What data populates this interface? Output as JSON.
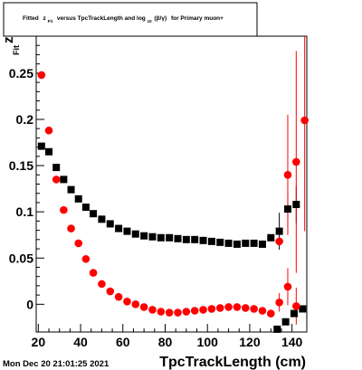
{
  "title": {
    "prefix": "Fitted",
    "z_sym": "z",
    "z_sub": "Fit",
    "mid": "versus TpcTrackLength and log",
    "log_sub": "10",
    "paren": "(β/γ)",
    "suffix": "for Primary muon+"
  },
  "footer": {
    "datestamp": "Mon Dec 20 21:01:25 2021"
  },
  "colors": {
    "black_series": "#000000",
    "red_series": "#ff0000",
    "frame": "#000000"
  },
  "chart_data": {
    "type": "scatter",
    "xlabel": "TpcTrackLength (cm)",
    "ylabel": "z_Fit",
    "xlim": [
      19,
      147
    ],
    "ylim": [
      -0.03,
      0.29
    ],
    "x_ticks": [
      {
        "value": 20,
        "label": "20"
      },
      {
        "value": 40,
        "label": "40"
      },
      {
        "value": 60,
        "label": "60"
      },
      {
        "value": 80,
        "label": "80"
      },
      {
        "value": 100,
        "label": "100"
      },
      {
        "value": 120,
        "label": "120"
      },
      {
        "value": 140,
        "label": "140"
      }
    ],
    "y_ticks": [
      {
        "value": 0,
        "label": "0"
      },
      {
        "value": 0.05,
        "label": "0.05"
      },
      {
        "value": 0.1,
        "label": "0.1"
      },
      {
        "value": 0.15,
        "label": "0.15"
      },
      {
        "value": 0.2,
        "label": "0.2"
      },
      {
        "value": 0.25,
        "label": "0.25"
      }
    ],
    "series": [
      {
        "name": "",
        "color": "#000000",
        "marker": "square",
        "points": [
          {
            "x": 21.5,
            "y": 0.171,
            "err": 0.0
          },
          {
            "x": 25,
            "y": 0.165,
            "err": 0.0
          },
          {
            "x": 28.5,
            "y": 0.148,
            "err": 0.0
          },
          {
            "x": 32,
            "y": 0.135,
            "err": 0.0
          },
          {
            "x": 35.5,
            "y": 0.124,
            "err": 0.0
          },
          {
            "x": 39,
            "y": 0.114,
            "err": 0.0
          },
          {
            "x": 42.5,
            "y": 0.105,
            "err": 0.0
          },
          {
            "x": 46,
            "y": 0.098,
            "err": 0.0
          },
          {
            "x": 50,
            "y": 0.092,
            "err": 0.0
          },
          {
            "x": 54,
            "y": 0.087,
            "err": 0.0
          },
          {
            "x": 58,
            "y": 0.082,
            "err": 0.0
          },
          {
            "x": 62,
            "y": 0.079,
            "err": 0.0
          },
          {
            "x": 66,
            "y": 0.076,
            "err": 0.0
          },
          {
            "x": 70,
            "y": 0.074,
            "err": 0.0
          },
          {
            "x": 74,
            "y": 0.073,
            "err": 0.0
          },
          {
            "x": 78,
            "y": 0.072,
            "err": 0.0
          },
          {
            "x": 82,
            "y": 0.072,
            "err": 0.0
          },
          {
            "x": 86,
            "y": 0.071,
            "err": 0.0
          },
          {
            "x": 90,
            "y": 0.07,
            "err": 0.0
          },
          {
            "x": 94,
            "y": 0.07,
            "err": 0.0
          },
          {
            "x": 98,
            "y": 0.069,
            "err": 0.0
          },
          {
            "x": 102,
            "y": 0.068,
            "err": 0.0
          },
          {
            "x": 106,
            "y": 0.067,
            "err": 0.0
          },
          {
            "x": 110,
            "y": 0.066,
            "err": 0.0
          },
          {
            "x": 114,
            "y": 0.065,
            "err": 0.0
          },
          {
            "x": 118,
            "y": 0.066,
            "err": 0.0
          },
          {
            "x": 122,
            "y": 0.066,
            "err": 0.0
          },
          {
            "x": 126,
            "y": 0.065,
            "err": 0.0
          },
          {
            "x": 130,
            "y": 0.072,
            "err": 0.0
          },
          {
            "x": 134,
            "y": 0.079,
            "err": 0.02
          },
          {
            "x": 138,
            "y": 0.103,
            "err": 0.02
          },
          {
            "x": 142,
            "y": 0.108,
            "err": 0.02
          },
          {
            "x": 133,
            "y": -0.027,
            "err": 0.0
          },
          {
            "x": 137,
            "y": -0.019,
            "err": 0.0
          },
          {
            "x": 141,
            "y": -0.01,
            "err": 0.0
          },
          {
            "x": 145,
            "y": -0.005,
            "err": 0.0
          }
        ]
      },
      {
        "name": "",
        "color": "#ff0000",
        "marker": "circle",
        "points": [
          {
            "x": 21.5,
            "y": 0.248,
            "err": 0.0
          },
          {
            "x": 25,
            "y": 0.188,
            "err": 0.0
          },
          {
            "x": 28.5,
            "y": 0.135,
            "err": 0.0
          },
          {
            "x": 32,
            "y": 0.102,
            "err": 0.0
          },
          {
            "x": 35.5,
            "y": 0.082,
            "err": 0.0
          },
          {
            "x": 39,
            "y": 0.066,
            "err": 0.0
          },
          {
            "x": 42.5,
            "y": 0.049,
            "err": 0.0
          },
          {
            "x": 46,
            "y": 0.034,
            "err": 0.0
          },
          {
            "x": 50,
            "y": 0.022,
            "err": 0.0
          },
          {
            "x": 54,
            "y": 0.014,
            "err": 0.0
          },
          {
            "x": 58,
            "y": 0.008,
            "err": 0.0
          },
          {
            "x": 62,
            "y": 0.003,
            "err": 0.0
          },
          {
            "x": 66,
            "y": 0.0,
            "err": 0.0
          },
          {
            "x": 70,
            "y": -0.003,
            "err": 0.0
          },
          {
            "x": 74,
            "y": -0.006,
            "err": 0.0
          },
          {
            "x": 78,
            "y": -0.008,
            "err": 0.0
          },
          {
            "x": 82,
            "y": -0.009,
            "err": 0.0
          },
          {
            "x": 86,
            "y": -0.009,
            "err": 0.0
          },
          {
            "x": 90,
            "y": -0.008,
            "err": 0.0
          },
          {
            "x": 94,
            "y": -0.007,
            "err": 0.0
          },
          {
            "x": 98,
            "y": -0.006,
            "err": 0.0
          },
          {
            "x": 102,
            "y": -0.005,
            "err": 0.0
          },
          {
            "x": 106,
            "y": -0.004,
            "err": 0.0
          },
          {
            "x": 110,
            "y": -0.003,
            "err": 0.0
          },
          {
            "x": 114,
            "y": -0.003,
            "err": 0.0
          },
          {
            "x": 118,
            "y": -0.004,
            "err": 0.0
          },
          {
            "x": 122,
            "y": -0.005,
            "err": 0.0
          },
          {
            "x": 126,
            "y": -0.007,
            "err": 0.0
          },
          {
            "x": 130,
            "y": -0.01,
            "err": 0.0
          },
          {
            "x": 134,
            "y": 0.002,
            "err": 0.01
          },
          {
            "x": 138,
            "y": 0.019,
            "err": 0.02
          },
          {
            "x": 142,
            "y": -0.002,
            "err": 0.02
          },
          {
            "x": 134,
            "y": 0.068,
            "err": 0.0
          },
          {
            "x": 138,
            "y": 0.14,
            "err": 0.065
          },
          {
            "x": 142,
            "y": 0.154,
            "err": 0.12
          },
          {
            "x": 146,
            "y": 0.199,
            "err": 0.12
          }
        ]
      }
    ]
  }
}
